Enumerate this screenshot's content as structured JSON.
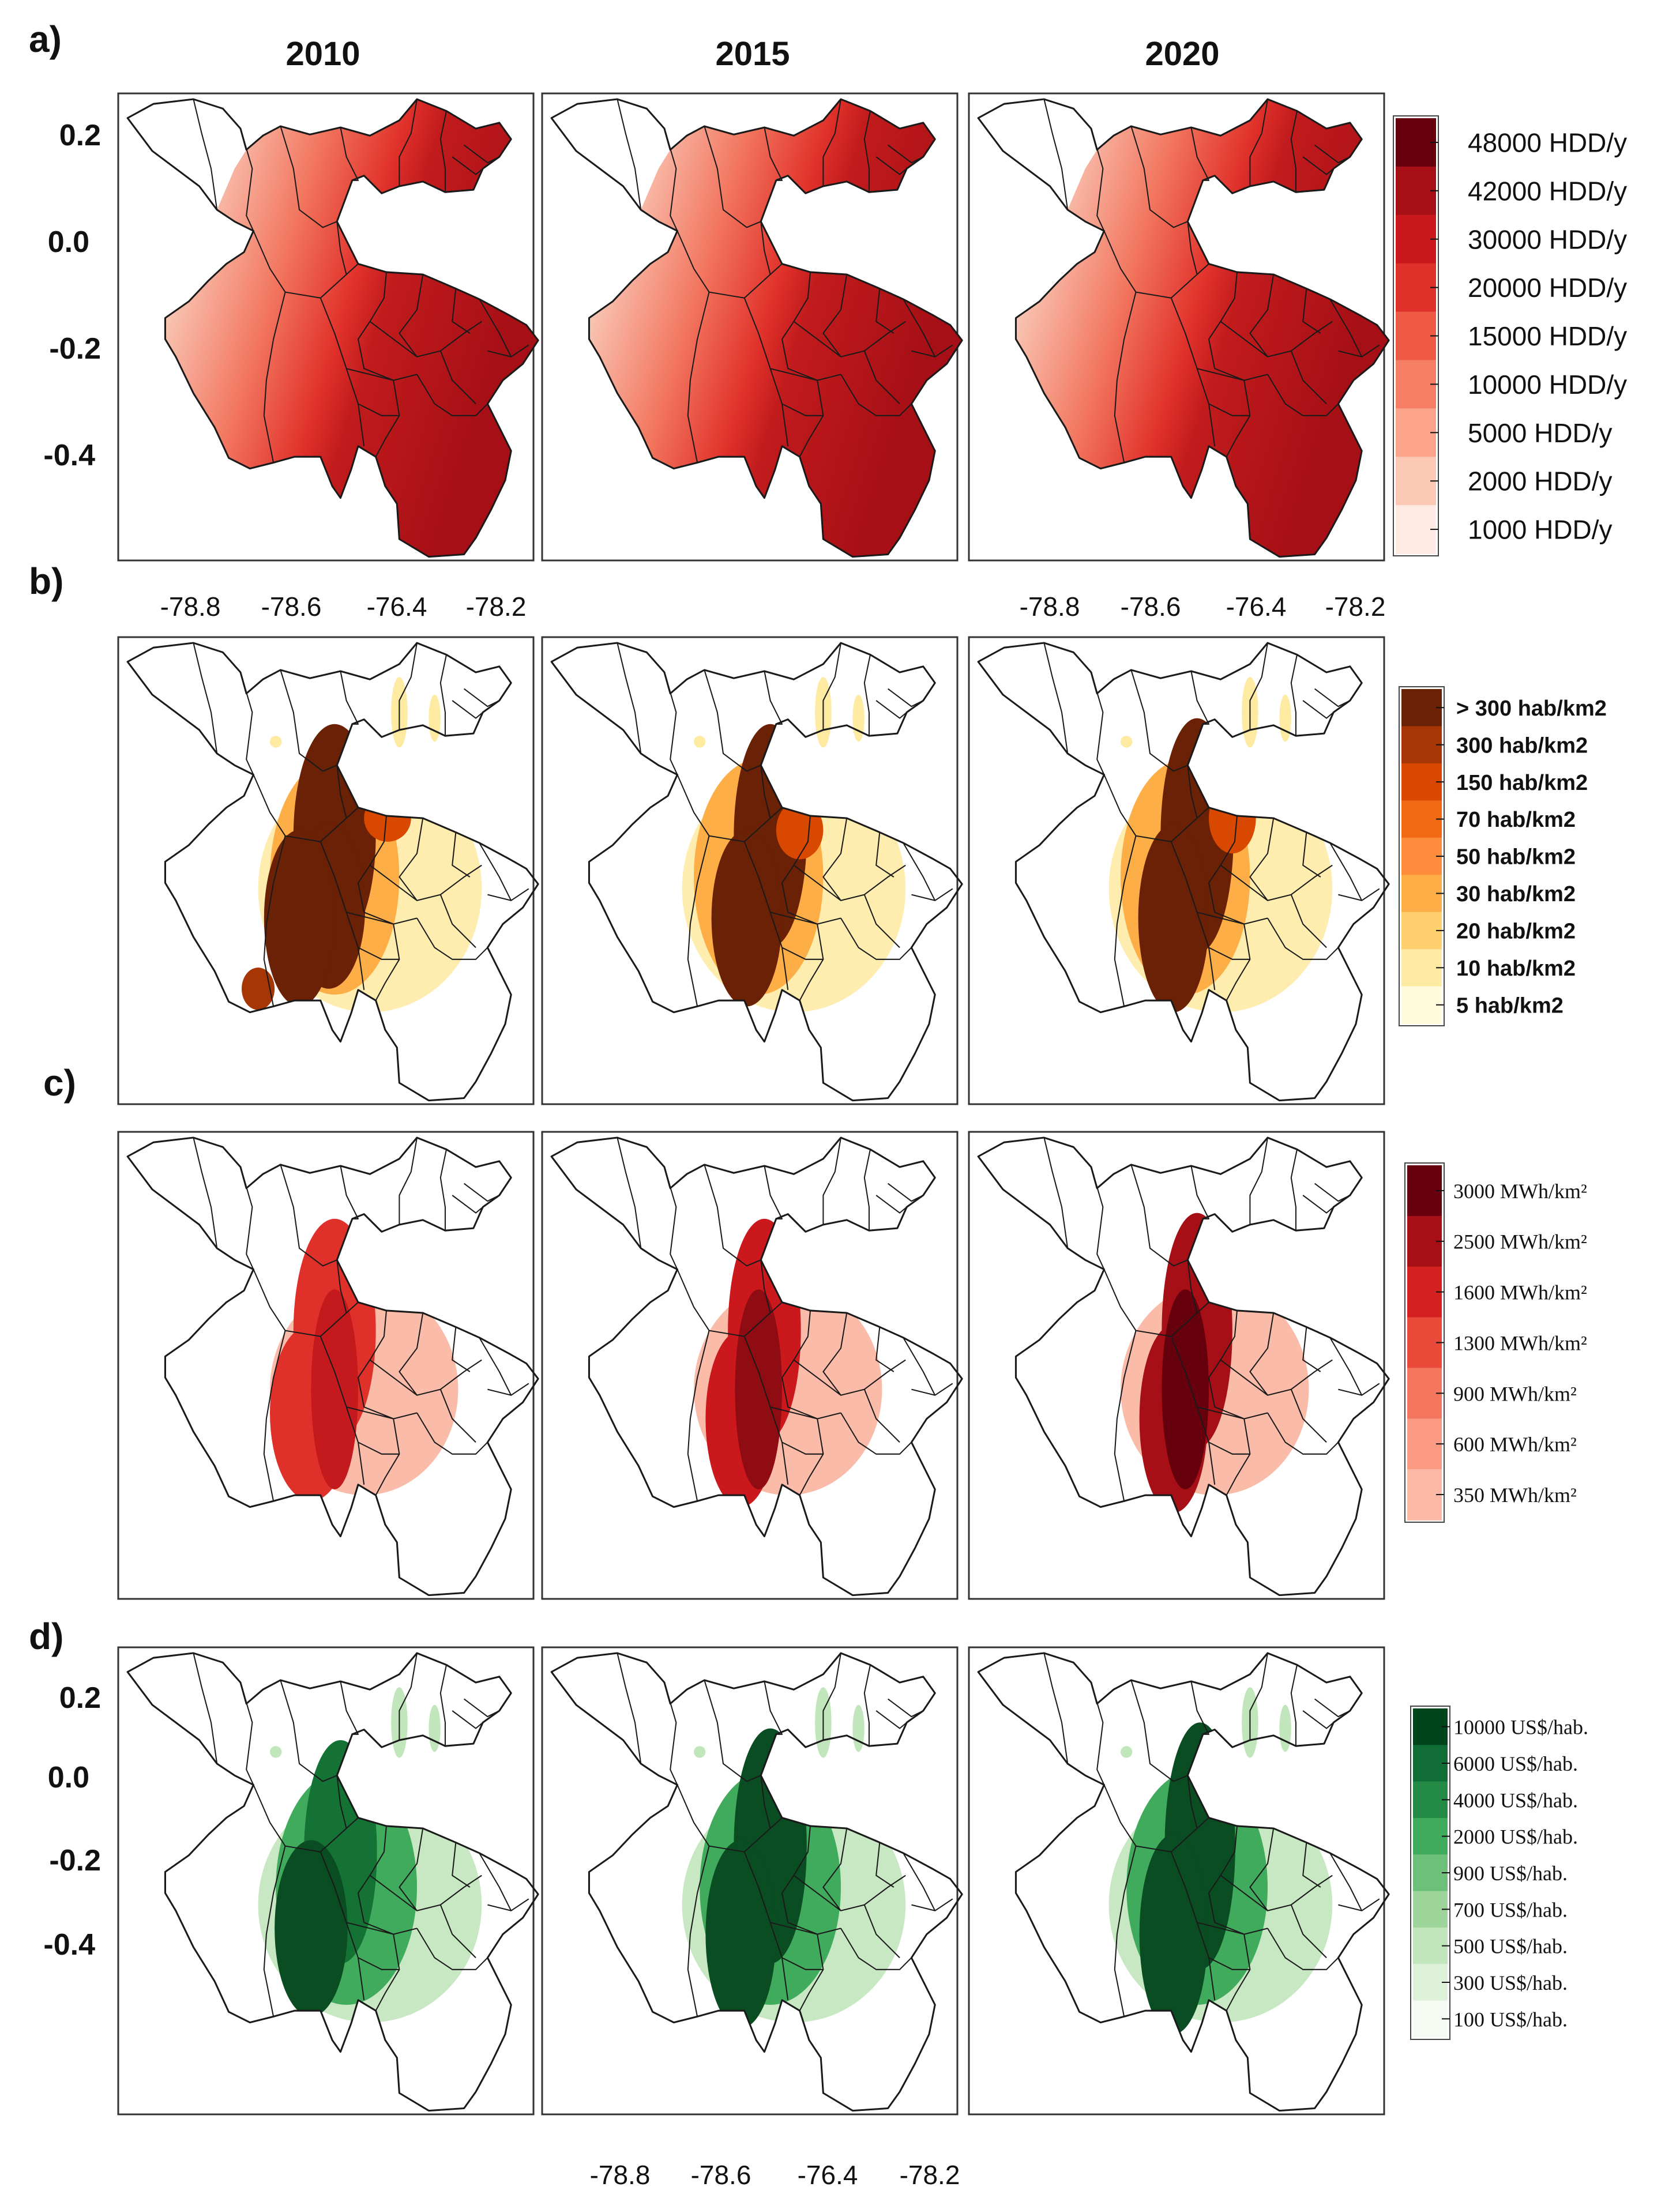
{
  "figure": {
    "panel_labels": [
      "a)",
      "b)",
      "c)",
      "d)"
    ],
    "year_labels": [
      "2010",
      "2015",
      "2020"
    ],
    "y_ticks": [
      "0.2",
      "0.0",
      "-0.2",
      "-0.4"
    ],
    "x_ticks": [
      "-78.8",
      "-78.6",
      "-76.4",
      "-78.2"
    ]
  },
  "colors": {
    "outline": "#1a1a1a",
    "panel_a_low": "#fbe2da",
    "panel_a_high": "#a50f15",
    "panel_b_high": "#6b2105",
    "panel_c_high": "#a50f0f",
    "panel_d_high": "#0b4d22"
  },
  "legends": {
    "a": {
      "items": [
        "48000 HDD/y",
        "42000 HDD/y",
        "30000 HDD/y",
        "20000 HDD/y",
        "15000 HDD/y",
        "10000 HDD/y",
        "5000   HDD/y",
        "2000   HDD/y",
        "1000   HDD/y"
      ],
      "colors": [
        "#67000d",
        "#a50f15",
        "#cb181d",
        "#e0302a",
        "#ef5a45",
        "#f67e64",
        "#fba489",
        "#fcc8b6",
        "#feeae2"
      ]
    },
    "b": {
      "items": [
        "> 300 hab/km2",
        "300 hab/km2",
        "150 hab/km2",
        "70 hab/km2",
        "50 hab/km2",
        "30 hab/km2",
        "20 hab/km2",
        "10 hab/km2",
        "5 hab/km2"
      ],
      "colors": [
        "#6b2105",
        "#a63603",
        "#d94801",
        "#f16913",
        "#fd8d3c",
        "#fdae47",
        "#fed06e",
        "#feeaa0",
        "#fffbdc"
      ]
    },
    "c": {
      "items": [
        "3000 MWh/km²",
        "2500 MWh/km²",
        "1600 MWh/km²",
        "1300 MWh/km²",
        "900   MWh/km²",
        "600   MWh/km²",
        "350   MWh/km²"
      ],
      "colors": [
        "#67000d",
        "#a50f15",
        "#d42020",
        "#ea4a3a",
        "#f5765e",
        "#fa9a83",
        "#fcb9a6"
      ]
    },
    "d": {
      "items": [
        "10000 US$/hab.",
        "6000 US$/hab.",
        "4000 US$/hab.",
        "2000 US$/hab.",
        "900 US$/hab.",
        "700 US$/hab.",
        "500 US$/hab.",
        "300 US$/hab.",
        "100 US$/hab."
      ],
      "colors": [
        "#00441b",
        "#116d36",
        "#238b45",
        "#41ab5d",
        "#6cc07a",
        "#9ed59a",
        "#c2e6bc",
        "#def2da",
        "#f5fbf3"
      ]
    }
  }
}
